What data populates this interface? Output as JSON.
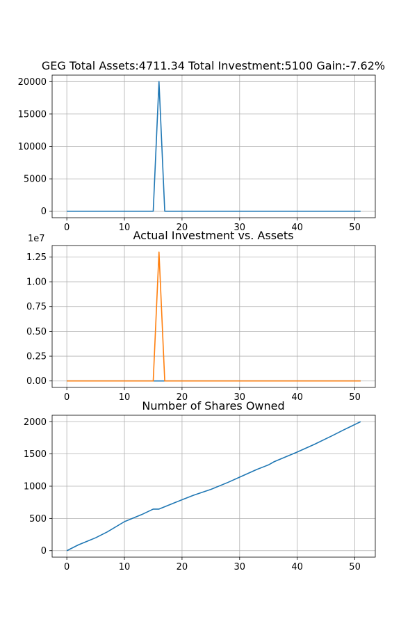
{
  "chart_data": [
    {
      "type": "line",
      "title": "GEG Total Assets:4711.34  Total Investment:5100  Gain:-7.62%",
      "xlabel": "",
      "ylabel": "",
      "xlim": [
        -2.55,
        53.55
      ],
      "ylim": [
        -1000,
        21000
      ],
      "xticks": [
        0,
        10,
        20,
        30,
        40,
        50
      ],
      "xtick_labels": [
        "0",
        "10",
        "20",
        "30",
        "40",
        "50"
      ],
      "yticks": [
        0,
        5000,
        10000,
        15000,
        20000
      ],
      "ytick_labels": [
        "0",
        "5000",
        "10000",
        "15000",
        "20000"
      ],
      "offset_label": "",
      "grid": true,
      "legend": false,
      "series": [
        {
          "color": "#1f77b4",
          "x": [
            0,
            15,
            16,
            17,
            51
          ],
          "y": [
            3,
            3,
            20000,
            3,
            3
          ]
        }
      ]
    },
    {
      "type": "line",
      "title": "Actual Investment vs. Assets",
      "xlabel": "",
      "ylabel": "",
      "xlim": [
        -2.55,
        53.55
      ],
      "ylim": [
        -0.065,
        1.365
      ],
      "xticks": [
        0,
        10,
        20,
        30,
        40,
        50
      ],
      "xtick_labels": [
        "0",
        "10",
        "20",
        "30",
        "40",
        "50"
      ],
      "yticks": [
        0,
        0.25,
        0.5,
        0.75,
        1.0,
        1.25
      ],
      "ytick_labels": [
        "0.00",
        "0.25",
        "0.50",
        "0.75",
        "1.00",
        "1.25"
      ],
      "offset_label": "1e7",
      "grid": true,
      "legend": false,
      "series": [
        {
          "color": "#1f77b4",
          "x": [
            0,
            51
          ],
          "y": [
            0,
            0
          ]
        },
        {
          "color": "#ff7f0e",
          "x": [
            0,
            15,
            16,
            17,
            51
          ],
          "y": [
            0,
            0,
            1.3,
            0,
            0
          ]
        }
      ]
    },
    {
      "type": "line",
      "title": "Number of Shares Owned",
      "xlabel": "",
      "ylabel": "",
      "xlim": [
        -2.55,
        53.55
      ],
      "ylim": [
        -100,
        2100
      ],
      "xticks": [
        0,
        10,
        20,
        30,
        40,
        50
      ],
      "xtick_labels": [
        "0",
        "10",
        "20",
        "30",
        "40",
        "50"
      ],
      "yticks": [
        0,
        500,
        1000,
        1500,
        2000
      ],
      "ytick_labels": [
        "0",
        "500",
        "1000",
        "1500",
        "2000"
      ],
      "offset_label": "",
      "grid": true,
      "legend": false,
      "series": [
        {
          "color": "#1f77b4",
          "x": [
            0,
            2,
            5,
            7,
            10,
            13,
            15,
            16,
            20,
            22,
            25,
            28,
            30,
            33,
            35,
            36,
            40,
            43,
            46,
            48,
            51
          ],
          "y": [
            0,
            90,
            200,
            290,
            450,
            560,
            645,
            645,
            790,
            860,
            950,
            1060,
            1140,
            1260,
            1330,
            1380,
            1530,
            1650,
            1780,
            1870,
            2000
          ]
        }
      ]
    }
  ]
}
